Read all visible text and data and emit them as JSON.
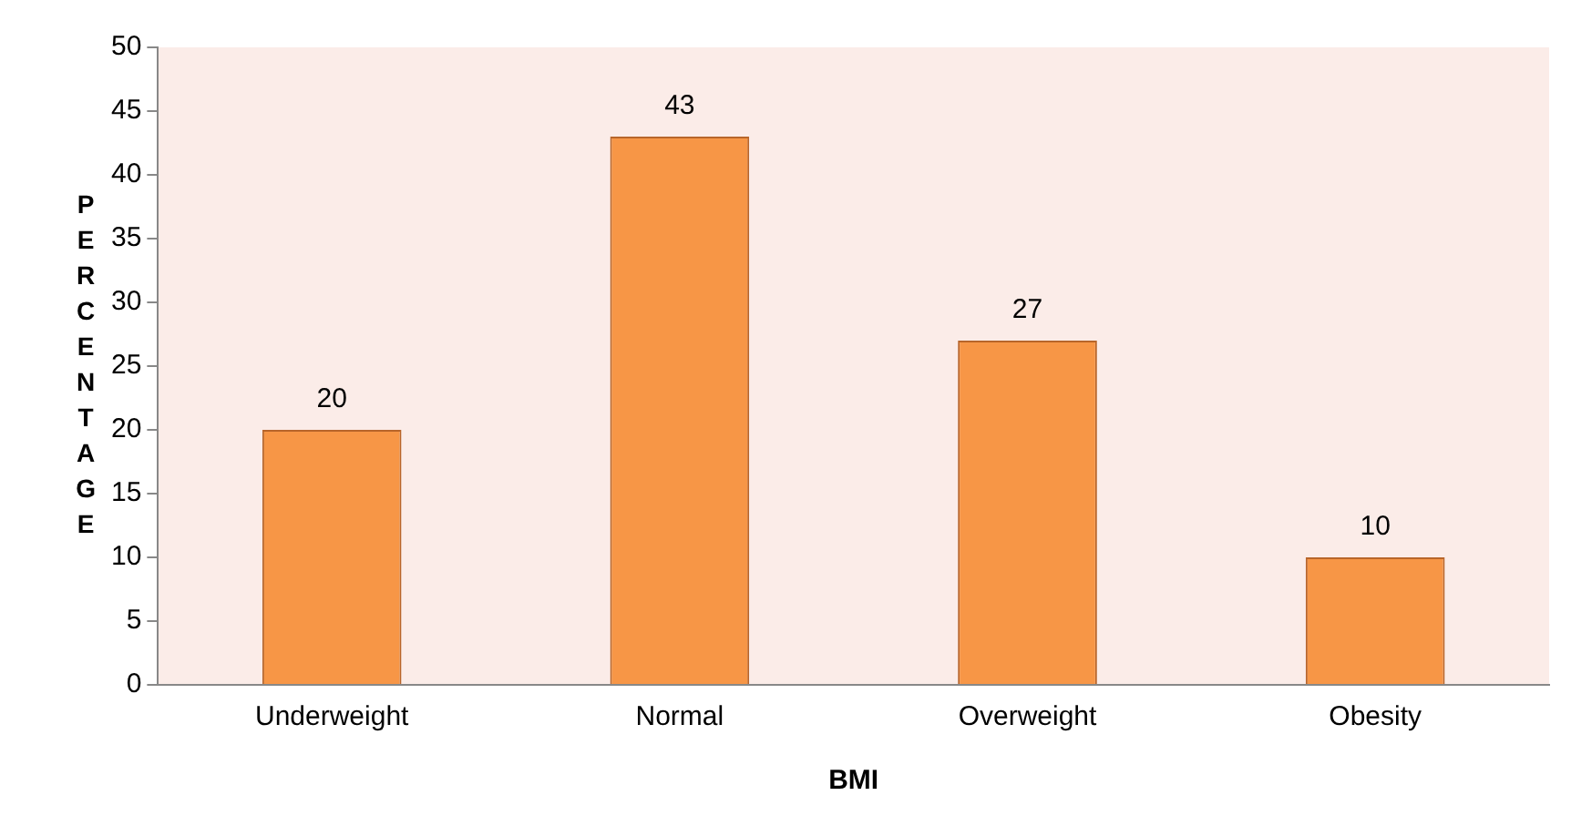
{
  "chart_data": {
    "type": "bar",
    "xlabel": "BMI",
    "ylabel": "PERCENTAGE",
    "categories": [
      "Underweight",
      "Normal",
      "Overweight",
      "Obesity"
    ],
    "values": [
      20,
      43,
      27,
      10
    ],
    "color": "#f79646",
    "ylim": [
      0,
      50
    ],
    "yticks": [
      0,
      5,
      10,
      15,
      20,
      25,
      30,
      35,
      40,
      45,
      50
    ],
    "grid": false,
    "legend": false,
    "data_labels": true
  }
}
